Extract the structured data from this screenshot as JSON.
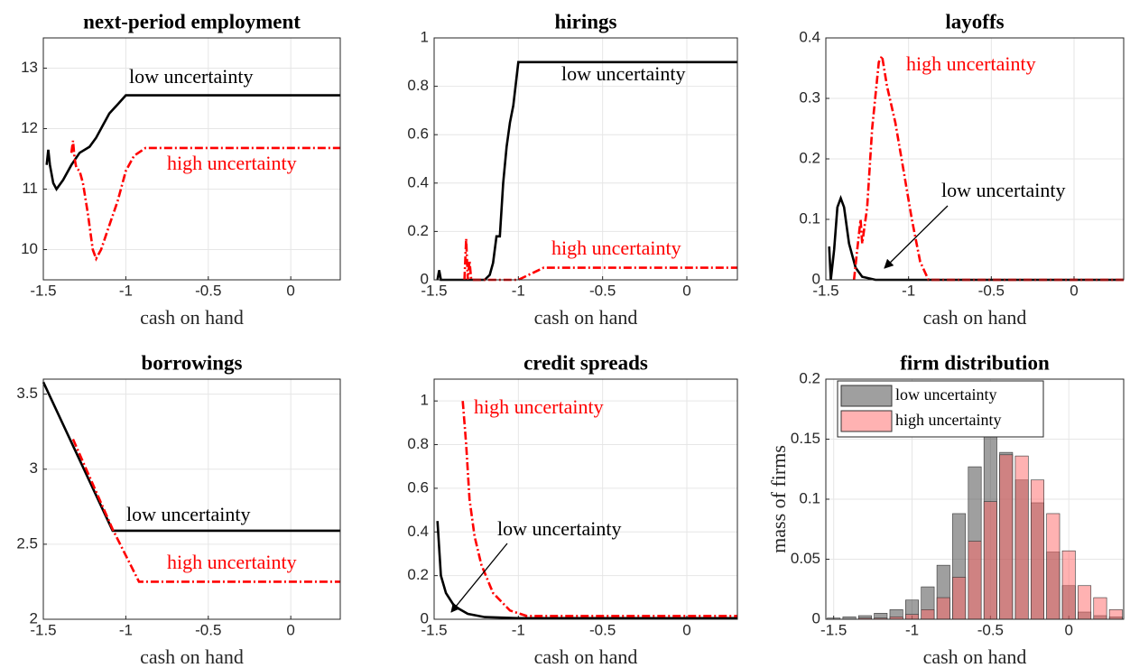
{
  "chart_data": [
    {
      "type": "line",
      "title": "next-period employment",
      "xlabel": "cash on hand",
      "xlim": [
        -1.5,
        0.3
      ],
      "xticks": [
        -1.5,
        -1,
        -0.5,
        0
      ],
      "ylim": [
        9.5,
        13.5
      ],
      "yticks": [
        10,
        11,
        12,
        13
      ],
      "grid": true,
      "series": [
        {
          "name": "low uncertainty",
          "color": "#000000",
          "style": "solid",
          "x": [
            -1.48,
            -1.47,
            -1.46,
            -1.44,
            -1.42,
            -1.38,
            -1.33,
            -1.28,
            -1.22,
            -1.18,
            -1.14,
            -1.1,
            -1.05,
            -1.0,
            0.3
          ],
          "values": [
            11.4,
            11.65,
            11.4,
            11.1,
            11.0,
            11.15,
            11.4,
            11.6,
            11.7,
            11.85,
            12.05,
            12.25,
            12.4,
            12.55,
            12.55
          ]
        },
        {
          "name": "high uncertainty",
          "color": "#ff0000",
          "style": "dashdot",
          "x": [
            -1.33,
            -1.32,
            -1.31,
            -1.3,
            -1.28,
            -1.26,
            -1.23,
            -1.2,
            -1.18,
            -1.15,
            -1.1,
            -1.05,
            -1.0,
            -0.95,
            -0.88,
            0.3
          ],
          "values": [
            11.6,
            11.8,
            11.5,
            11.35,
            11.3,
            11.1,
            10.6,
            10.0,
            9.85,
            10.0,
            10.4,
            10.8,
            11.3,
            11.55,
            11.68,
            11.68
          ]
        }
      ]
    },
    {
      "type": "line",
      "title": "hirings",
      "xlabel": "cash on hand",
      "xlim": [
        -1.5,
        0.3
      ],
      "xticks": [
        -1.5,
        -1,
        -0.5,
        0
      ],
      "ylim": [
        0,
        1
      ],
      "yticks": [
        0,
        0.2,
        0.4,
        0.6,
        0.8,
        1
      ],
      "grid": true,
      "series": [
        {
          "name": "low uncertainty",
          "color": "#000000",
          "style": "solid",
          "x": [
            -1.48,
            -1.47,
            -1.46,
            -1.2,
            -1.17,
            -1.15,
            -1.13,
            -1.11,
            -1.09,
            -1.07,
            -1.05,
            -1.03,
            -1.0,
            0.3
          ],
          "values": [
            0,
            0.04,
            0,
            0,
            0.02,
            0.07,
            0.18,
            0.18,
            0.4,
            0.55,
            0.65,
            0.72,
            0.9,
            0.9
          ]
        },
        {
          "name": "high uncertainty",
          "color": "#ff0000",
          "style": "dashdot",
          "x": [
            -1.32,
            -1.31,
            -1.3,
            -1.29,
            -1.28,
            -1.0,
            -0.85,
            0.3
          ],
          "values": [
            0,
            0.17,
            0,
            0.08,
            0,
            0,
            0.05,
            0.05
          ]
        }
      ]
    },
    {
      "type": "line",
      "title": "layoffs",
      "xlabel": "cash on hand",
      "xlim": [
        -1.5,
        0.3
      ],
      "xticks": [
        -1.5,
        -1,
        -0.5,
        0
      ],
      "ylim": [
        0,
        0.4
      ],
      "yticks": [
        0,
        0.1,
        0.2,
        0.3,
        0.4
      ],
      "grid": true,
      "series": [
        {
          "name": "low uncertainty",
          "color": "#000000",
          "style": "solid",
          "x": [
            -1.48,
            -1.47,
            -1.45,
            -1.43,
            -1.41,
            -1.39,
            -1.36,
            -1.32,
            -1.28,
            -1.2,
            0.3
          ],
          "values": [
            0.055,
            0,
            0.05,
            0.12,
            0.135,
            0.12,
            0.06,
            0.02,
            0.005,
            0,
            0
          ]
        },
        {
          "name": "high uncertainty",
          "color": "#ff0000",
          "style": "dashdot",
          "x": [
            -1.33,
            -1.31,
            -1.29,
            -1.28,
            -1.25,
            -1.22,
            -1.18,
            -1.16,
            -1.13,
            -1.08,
            -1.03,
            -0.98,
            -0.93,
            -0.88,
            0.3
          ],
          "values": [
            0,
            0.05,
            0.1,
            0.06,
            0.12,
            0.25,
            0.36,
            0.37,
            0.32,
            0.26,
            0.18,
            0.1,
            0.03,
            0,
            0
          ]
        }
      ]
    },
    {
      "type": "line",
      "title": "borrowings",
      "xlabel": "cash on hand",
      "xlim": [
        -1.5,
        0.3
      ],
      "xticks": [
        -1.5,
        -1,
        -0.5,
        0
      ],
      "ylim": [
        2,
        3.6
      ],
      "yticks": [
        2,
        2.5,
        3,
        3.5
      ],
      "grid": true,
      "series": [
        {
          "name": "low uncertainty",
          "color": "#000000",
          "style": "solid",
          "x": [
            -1.5,
            -1.08,
            0.3
          ],
          "values": [
            3.58,
            2.59,
            2.59
          ]
        },
        {
          "name": "high uncertainty",
          "color": "#ff0000",
          "style": "dashdot",
          "x": [
            -1.32,
            -1.08,
            -0.92,
            0.3
          ],
          "values": [
            3.2,
            2.6,
            2.25,
            2.25
          ]
        }
      ]
    },
    {
      "type": "line",
      "title": "credit spreads",
      "xlabel": "cash on hand",
      "xlim": [
        -1.5,
        0.3
      ],
      "xticks": [
        -1.5,
        -1,
        -0.5,
        0
      ],
      "ylim": [
        0,
        1.1
      ],
      "yticks": [
        0,
        0.2,
        0.4,
        0.6,
        0.8,
        1
      ],
      "grid": true,
      "series": [
        {
          "name": "low uncertainty",
          "color": "#000000",
          "style": "solid",
          "x": [
            -1.48,
            -1.46,
            -1.43,
            -1.38,
            -1.3,
            -1.2,
            -1.0,
            0.3
          ],
          "values": [
            0.45,
            0.2,
            0.12,
            0.06,
            0.025,
            0.01,
            0.005,
            0.005
          ]
        },
        {
          "name": "high uncertainty",
          "color": "#ff0000",
          "style": "dashdot",
          "x": [
            -1.33,
            -1.31,
            -1.29,
            -1.26,
            -1.22,
            -1.15,
            -1.05,
            -0.95,
            0.3
          ],
          "values": [
            1.0,
            0.8,
            0.55,
            0.38,
            0.25,
            0.12,
            0.04,
            0.015,
            0.015
          ]
        }
      ]
    },
    {
      "type": "histogram",
      "title": "firm distribution",
      "xlabel": "cash on hand",
      "ylabel": "mass of firms",
      "xlim": [
        -1.55,
        0.35
      ],
      "xticks": [
        -1.5,
        -1,
        -0.5,
        0
      ],
      "ylim": [
        0,
        0.2
      ],
      "yticks": [
        0,
        0.05,
        0.1,
        0.15,
        0.2
      ],
      "grid": true,
      "legend": "upper left",
      "alpha": 0.5,
      "bins": [
        -1.55,
        -1.45,
        -1.35,
        -1.25,
        -1.15,
        -1.05,
        -0.95,
        -0.85,
        -0.75,
        -0.65,
        -0.55,
        -0.45,
        -0.35,
        -0.25,
        -0.15,
        -0.05,
        0.05,
        0.15,
        0.25,
        0.35
      ],
      "series": [
        {
          "name": "low uncertainty",
          "color": "#404040",
          "values": [
            0.001,
            0.002,
            0.003,
            0.005,
            0.008,
            0.016,
            0.027,
            0.045,
            0.088,
            0.127,
            0.156,
            0.139,
            0.116,
            0.097,
            0.056,
            0.028,
            0.006,
            0.003,
            0.002
          ]
        },
        {
          "name": "high uncertainty",
          "color": "#ff6666",
          "values": [
            0,
            0,
            0.001,
            0.001,
            0.002,
            0.004,
            0.008,
            0.018,
            0.035,
            0.065,
            0.098,
            0.137,
            0.136,
            0.116,
            0.088,
            0.057,
            0.028,
            0.018,
            0.008
          ]
        }
      ]
    }
  ]
}
